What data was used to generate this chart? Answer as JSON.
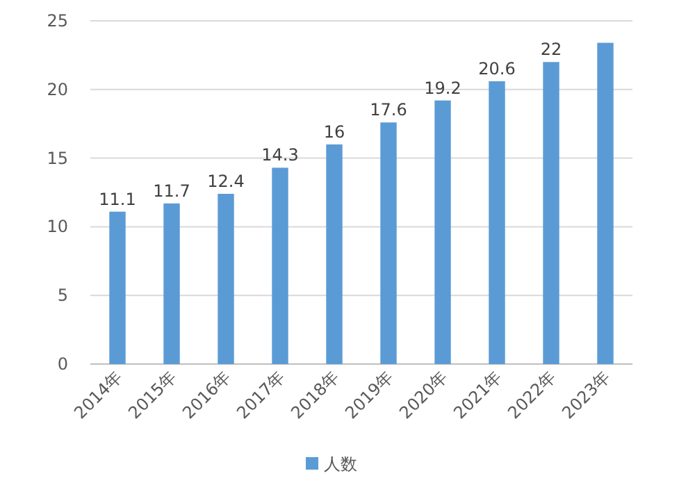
{
  "chart_data": {
    "type": "bar",
    "categories": [
      "2014年",
      "2015年",
      "2016年",
      "2017年",
      "2018年",
      "2019年",
      "2020年",
      "2021年",
      "2022年",
      "2023年"
    ],
    "series": [
      {
        "name": "人数",
        "color": "#5b9bd5",
        "values": [
          11.1,
          11.7,
          12.4,
          14.3,
          16,
          17.6,
          19.2,
          20.6,
          22,
          23.4
        ],
        "value_labels": [
          "11.1",
          "11.7",
          "12.4",
          "14.3",
          "16",
          "17.6",
          "19.2",
          "20.6",
          "22",
          null
        ]
      }
    ],
    "ylim": [
      0,
      25
    ],
    "yticks": [
      0,
      5,
      10,
      15,
      20,
      25
    ],
    "grid": "y",
    "legend": "bottom"
  }
}
